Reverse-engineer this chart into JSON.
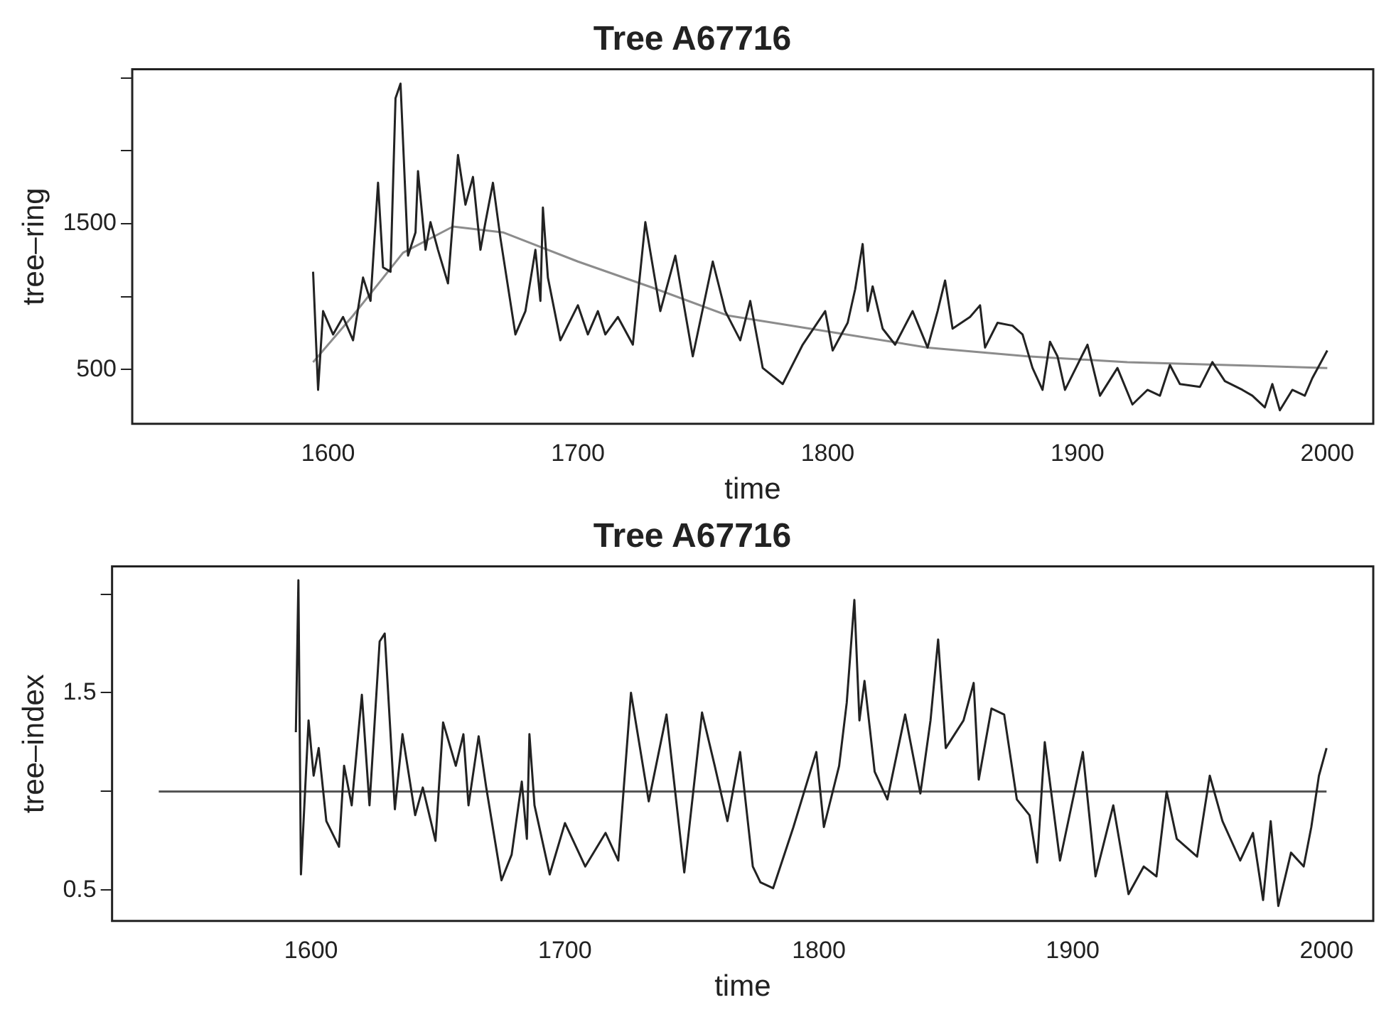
{
  "chart_data": [
    {
      "type": "line",
      "title": "Tree A67716",
      "xlabel": "time",
      "ylabel": "tree–ring",
      "xlim": [
        1521.6,
        2018.4
      ],
      "xticks": [
        1600,
        1700,
        1800,
        1900,
        2000
      ],
      "ylim": [
        127,
        2558
      ],
      "yticks": [
        500,
        {
          "value": 1000,
          "label": null
        },
        1500,
        {
          "value": 2000,
          "label": null
        },
        {
          "value": 2500,
          "label": null
        }
      ],
      "series": [
        {
          "color": "#222222",
          "x": [
            1594,
            1596,
            1598,
            1602,
            1606,
            1610,
            1614,
            1617,
            1620,
            1622,
            1625,
            1627,
            1629,
            1632,
            1635,
            1636,
            1639,
            1641,
            1644,
            1648,
            1652,
            1655,
            1658,
            1661,
            1663,
            1666,
            1669,
            1675,
            1679,
            1683,
            1685,
            1686,
            1688,
            1693,
            1700,
            1704,
            1708,
            1711,
            1716,
            1722,
            1727,
            1733,
            1739,
            1746,
            1754,
            1759,
            1765,
            1769,
            1774,
            1782,
            1790,
            1799,
            1802,
            1808,
            1811,
            1814,
            1816,
            1818,
            1822,
            1827,
            1834,
            1840,
            1844,
            1847,
            1850,
            1857,
            1861,
            1863,
            1868,
            1874,
            1878,
            1882,
            1886,
            1889,
            1892,
            1895,
            1904,
            1909,
            1916,
            1922,
            1928,
            1933,
            1937,
            1941,
            1949,
            1954,
            1959,
            1966,
            1970,
            1975,
            1978,
            1981,
            1986,
            1991,
            1994,
            2000
          ],
          "values": [
            1170,
            360,
            900,
            740,
            860,
            700,
            1130,
            970,
            1780,
            1200,
            1170,
            2360,
            2460,
            1280,
            1440,
            1860,
            1320,
            1510,
            1320,
            1090,
            1970,
            1630,
            1820,
            1320,
            1510,
            1780,
            1400,
            740,
            900,
            1320,
            970,
            1610,
            1130,
            700,
            940,
            740,
            900,
            740,
            860,
            670,
            1510,
            900,
            1280,
            590,
            1240,
            900,
            700,
            970,
            510,
            400,
            670,
            900,
            630,
            820,
            1050,
            1360,
            900,
            1070,
            780,
            670,
            900,
            650,
            900,
            1110,
            780,
            860,
            940,
            650,
            820,
            800,
            740,
            510,
            360,
            690,
            590,
            360,
            670,
            320,
            510,
            260,
            360,
            320,
            530,
            400,
            380,
            550,
            420,
            360,
            320,
            240,
            400,
            220,
            360,
            320,
            440,
            630
          ]
        },
        {
          "color": "#8c8c8c",
          "x": [
            1594,
            1610,
            1630,
            1650,
            1670,
            1700,
            1730,
            1760,
            1800,
            1840,
            1880,
            1920,
            1960,
            2000
          ],
          "values": [
            550,
            870,
            1300,
            1480,
            1440,
            1240,
            1060,
            870,
            760,
            650,
            590,
            550,
            530,
            510
          ]
        }
      ]
    },
    {
      "type": "line",
      "title": "Tree A67716",
      "xlabel": "time",
      "ylabel": "tree–index",
      "xlim": [
        1521.6,
        2018.4
      ],
      "xticks": [
        1600,
        1700,
        1800,
        1900,
        2000
      ],
      "ylim": [
        0.344,
        2.14
      ],
      "yticks": [
        0.5,
        {
          "value": 1,
          "label": null
        },
        1.5,
        {
          "value": 2,
          "label": null
        }
      ],
      "series": [
        {
          "color": "#222222",
          "x": [
            1594,
            1595,
            1596,
            1599,
            1601,
            1603,
            1606,
            1611,
            1613,
            1616,
            1620,
            1623,
            1627,
            1629,
            1633,
            1636,
            1641,
            1644,
            1649,
            1652,
            1657,
            1660,
            1662,
            1666,
            1669,
            1675,
            1679,
            1683,
            1685,
            1686,
            1688,
            1694,
            1700,
            1708,
            1716,
            1721,
            1726,
            1733,
            1740,
            1747,
            1754,
            1759,
            1764,
            1769,
            1774,
            1777,
            1782,
            1790,
            1799,
            1802,
            1808,
            1811,
            1814,
            1816,
            1818,
            1822,
            1827,
            1834,
            1840,
            1844,
            1847,
            1850,
            1857,
            1861,
            1863,
            1868,
            1873,
            1878,
            1883,
            1886,
            1889,
            1895,
            1904,
            1909,
            1916,
            1922,
            1928,
            1933,
            1937,
            1941,
            1949,
            1954,
            1959,
            1966,
            1971,
            1975,
            1978,
            1981,
            1986,
            1991,
            1994,
            1997,
            2000
          ],
          "values": [
            1.3,
            2.07,
            0.58,
            1.36,
            1.08,
            1.22,
            0.85,
            0.72,
            1.13,
            0.93,
            1.49,
            0.93,
            1.76,
            1.8,
            0.91,
            1.29,
            0.88,
            1.02,
            0.75,
            1.35,
            1.13,
            1.29,
            0.93,
            1.28,
            1.02,
            0.55,
            0.68,
            1.05,
            0.76,
            1.29,
            0.93,
            0.58,
            0.84,
            0.62,
            0.79,
            0.65,
            1.5,
            0.95,
            1.39,
            0.59,
            1.4,
            1.13,
            0.85,
            1.2,
            0.62,
            0.54,
            0.51,
            0.82,
            1.2,
            0.82,
            1.13,
            1.45,
            1.97,
            1.36,
            1.56,
            1.1,
            0.96,
            1.39,
            0.99,
            1.36,
            1.77,
            1.22,
            1.36,
            1.55,
            1.06,
            1.42,
            1.39,
            0.96,
            0.88,
            0.64,
            1.25,
            0.65,
            1.2,
            0.57,
            0.93,
            0.48,
            0.62,
            0.57,
            1.0,
            0.76,
            0.67,
            1.08,
            0.85,
            0.65,
            0.79,
            0.45,
            0.85,
            0.42,
            0.69,
            0.62,
            0.82,
            1.08,
            1.22
          ]
        },
        {
          "color": "#555555",
          "x": [
            1540,
            2000
          ],
          "values": [
            1,
            1
          ]
        }
      ]
    }
  ]
}
